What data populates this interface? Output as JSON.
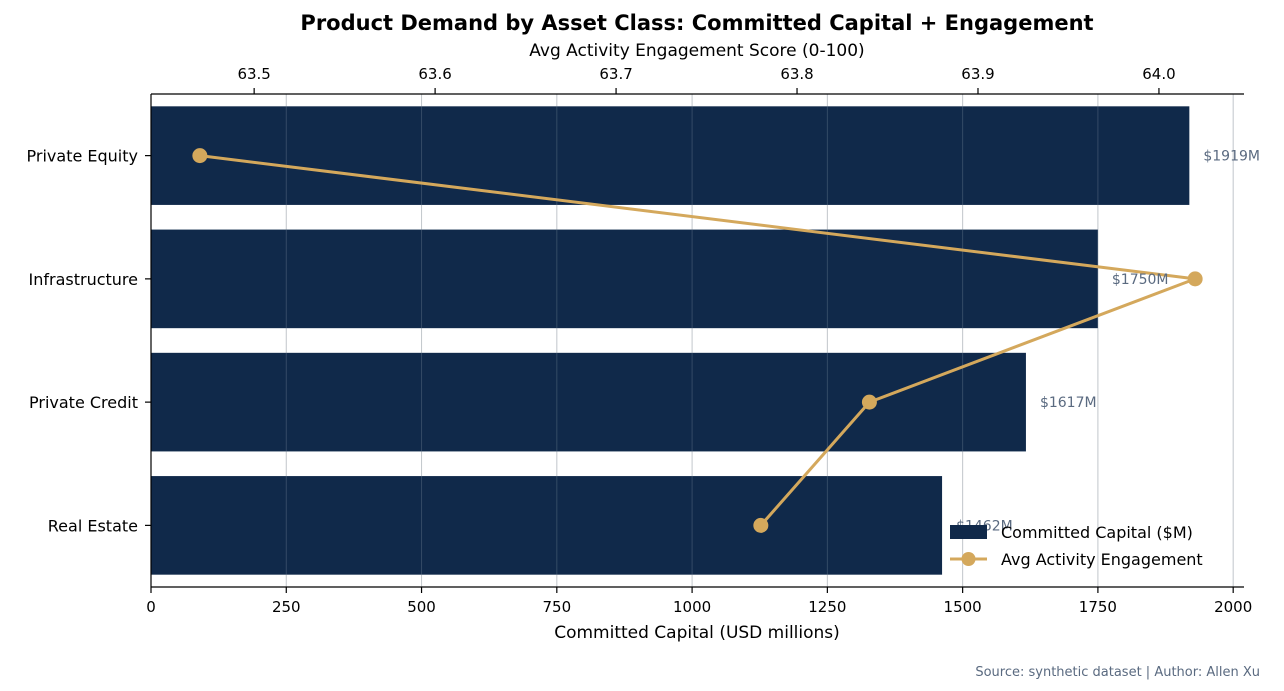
{
  "chart_data": {
    "type": "bar",
    "orientation": "horizontal",
    "title": "Product Demand by Asset Class: Committed Capital + Engagement",
    "categories": [
      "Private Equity",
      "Infrastructure",
      "Private Credit",
      "Real Estate"
    ],
    "series": [
      {
        "name": "Committed Capital ($M)",
        "type": "bar",
        "axis": "bottom",
        "values": [
          1919,
          1750,
          1617,
          1462
        ],
        "data_labels": [
          "$1919M",
          "$1750M",
          "$1617M",
          "$1462M"
        ],
        "color": "#10294a"
      },
      {
        "name": "Avg Activity Engagement",
        "type": "line",
        "axis": "top",
        "values": [
          63.47,
          64.02,
          63.84,
          63.78
        ],
        "color": "#d4a85c"
      }
    ],
    "xlabel": "Committed Capital (USD millions)",
    "xlim": [
      0,
      2020
    ],
    "xticks": [
      0,
      250,
      500,
      750,
      1000,
      1250,
      1500,
      1750,
      2000
    ],
    "x2label": "Avg Activity Engagement Score (0-100)",
    "x2lim": [
      63.443,
      64.047
    ],
    "x2ticks": [
      "63.5",
      "63.6",
      "63.7",
      "63.8",
      "63.9",
      "64.0"
    ],
    "grid": "vertical",
    "legend_position": "lower-right",
    "source_note": "Source: synthetic dataset | Author: Allen Xu",
    "colors": {
      "bar": "#10294a",
      "line": "#d4a85c",
      "data_label": "#5a6a80",
      "grid": "#dddddd",
      "source": "#5a6a80"
    }
  }
}
